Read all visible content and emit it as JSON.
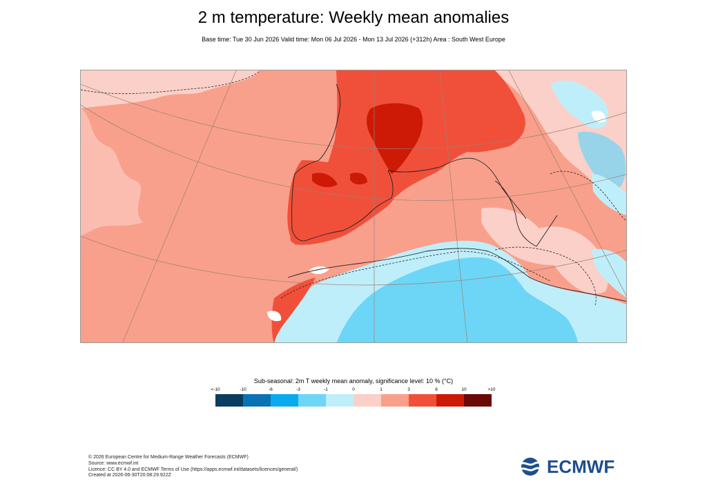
{
  "title": "2 m temperature: Weekly mean anomalies",
  "subtitle": "Base time: Tue 30 Jun 2026 Valid time: Mon 06 Jul 2026 - Mon 13 Jul 2026 (+312h) Area : South West Europe",
  "legend": {
    "title": "Sub-seasonal: 2m T weekly mean anomaly, significance level: 10 % (°C)",
    "labels": [
      "<-10",
      "-10",
      "-6",
      "-3",
      "-1",
      "0",
      "1",
      "3",
      "6",
      "10",
      ">10"
    ],
    "colors": [
      "#0a3d5e",
      "#0a73b3",
      "#0aaaee",
      "#6dd6f7",
      "#bfeefb",
      "#fbd0c8",
      "#f8a08c",
      "#f0503a",
      "#cc1a06",
      "#6b0808"
    ]
  },
  "map_colors": {
    "sea_light": "#f8a08c",
    "warm": "#f0503a",
    "hot": "#cc1a06",
    "neutral_warm": "#fbd0c8",
    "cool": "#6dd6f7",
    "cool_light": "#bfeefb"
  },
  "footer": {
    "line1": "© 2026 European Centre for Medium-Range Weather Forecasts (ECMWF)",
    "line2": "Source: www.ecmwf.int",
    "line3": "Licence: CC BY 4.0 and ECMWF Terms of Use (https://apps.ecmwf.int/datasets/licences/general/)",
    "line4": "Created at 2026-06-30T20:08:29.922Z"
  },
  "logo": {
    "text": "ECMWF",
    "color": "#1e4e8c"
  }
}
